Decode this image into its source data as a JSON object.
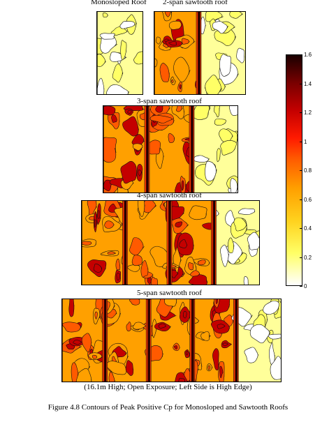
{
  "figure_caption": "Figure 4.8  Contours of Peak Positive Cp for Monosloped and Sawtooth Roofs",
  "chart_data": {
    "type": "heatmap",
    "title": "",
    "subtitle": "(16.1m High; Open Exposure; Left Side is High Edge)",
    "panels": [
      {
        "label": "Monosloped Roof",
        "spans": 1
      },
      {
        "label": "2-span sawtooth roof",
        "spans": 2
      },
      {
        "label": "3-span sawtooth roof",
        "spans": 3
      },
      {
        "label": "4-span sawtooth roof",
        "spans": 4
      },
      {
        "label": "5-span sawtooth roof",
        "spans": 5
      }
    ],
    "colorbar": {
      "min": 0,
      "max": 1.6,
      "ticks": [
        "0",
        "0.2",
        "0.4",
        "0.6",
        "0.8",
        "1",
        "1.2",
        "1.4",
        "1.6"
      ],
      "colors": [
        "#ffffff",
        "#ffff66",
        "#ffd21e",
        "#ffa000",
        "#ff5a00",
        "#ff1a00",
        "#c40000",
        "#780000",
        "#1a0000"
      ]
    }
  }
}
